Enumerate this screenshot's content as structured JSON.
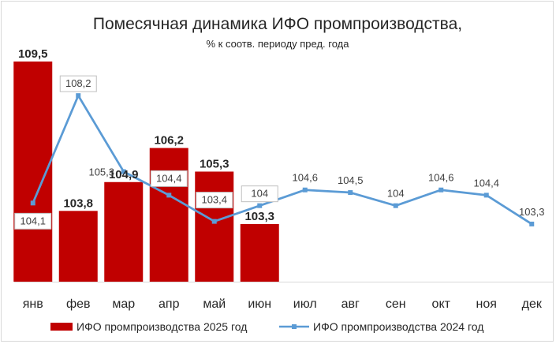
{
  "chart_data": {
    "type": "bar+line",
    "title": "Помесячная динамика ИФО промпроизводства,",
    "subtitle": "% к соотв. периоду пред. года",
    "categories": [
      "янв",
      "фев",
      "мар",
      "апр",
      "май",
      "июн",
      "июл",
      "авг",
      "сен",
      "окт",
      "ноя",
      "дек"
    ],
    "series": [
      {
        "name": "ИФО промпроизводства 2025 год",
        "kind": "bar",
        "color": "#c00000",
        "values": [
          109.5,
          103.8,
          104.9,
          106.2,
          105.3,
          103.3,
          null,
          null,
          null,
          null,
          null,
          null
        ],
        "labels": [
          "109,5",
          "103,8",
          "104,9",
          "106,2",
          "105,3",
          "103,3",
          "",
          "",
          "",
          "",
          "",
          ""
        ]
      },
      {
        "name": "ИФО промпроизводства 2024 год",
        "kind": "line",
        "color": "#5b9bd5",
        "values": [
          104.1,
          108.2,
          105.3,
          104.4,
          103.4,
          104.0,
          104.6,
          104.5,
          104.0,
          104.6,
          104.4,
          103.3
        ],
        "labels": [
          "104,1",
          "108,2",
          "105,3",
          "104,4",
          "103,4",
          "104",
          "104,6",
          "104,5",
          "104",
          "104,6",
          "104,4",
          "103,3"
        ]
      }
    ],
    "ylim": [
      101.1,
      109.8
    ],
    "grid": false,
    "legend_position": "bottom",
    "xlabel": "",
    "ylabel": ""
  }
}
